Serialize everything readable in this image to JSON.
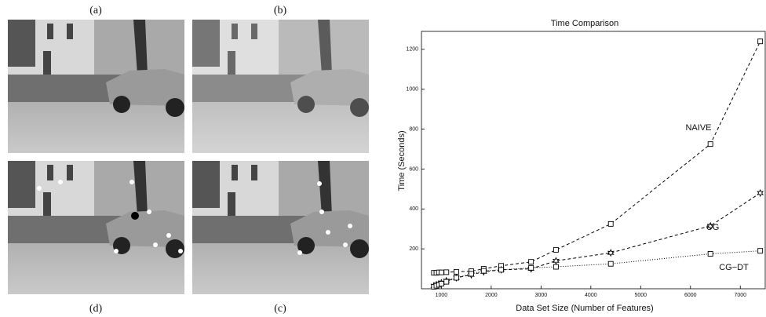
{
  "panels": {
    "labels": [
      "(a)",
      "(b)",
      "(d)",
      "(c)"
    ]
  },
  "chart_data": {
    "type": "line",
    "title": "Time Comparison",
    "x_label": "Data Set Size (Number of Features)",
    "y_label": "Time (Seconds)",
    "x": [
      850,
      900,
      950,
      1000,
      1100,
      1300,
      1600,
      1850,
      2200,
      2800,
      3300,
      4400,
      6400,
      7400
    ],
    "series": [
      {
        "name": "NAIVE",
        "color": "#000000",
        "marker": "square",
        "line_style": "dashed",
        "values": [
          80,
          80,
          82,
          82,
          83,
          85,
          88,
          100,
          115,
          135,
          195,
          325,
          725,
          1240
        ]
      },
      {
        "name": "CG",
        "color": "#000000",
        "marker": "star",
        "line_style": "dashed",
        "values": [
          15,
          20,
          25,
          30,
          40,
          55,
          70,
          85,
          95,
          100,
          140,
          180,
          315,
          480
        ]
      },
      {
        "name": "CG−DT",
        "color": "#000000",
        "marker": "square",
        "line_style": "dotted",
        "values": [
          10,
          15,
          20,
          25,
          35,
          55,
          75,
          90,
          95,
          105,
          110,
          125,
          175,
          190
        ]
      }
    ],
    "xlim": [
      600,
      7500
    ],
    "ylim": [
      0,
      1290
    ],
    "xticks": [
      1000,
      2000,
      3000,
      4000,
      5000,
      6000,
      7000
    ],
    "yticks": [
      200,
      400,
      600,
      800,
      1000,
      1200
    ]
  }
}
